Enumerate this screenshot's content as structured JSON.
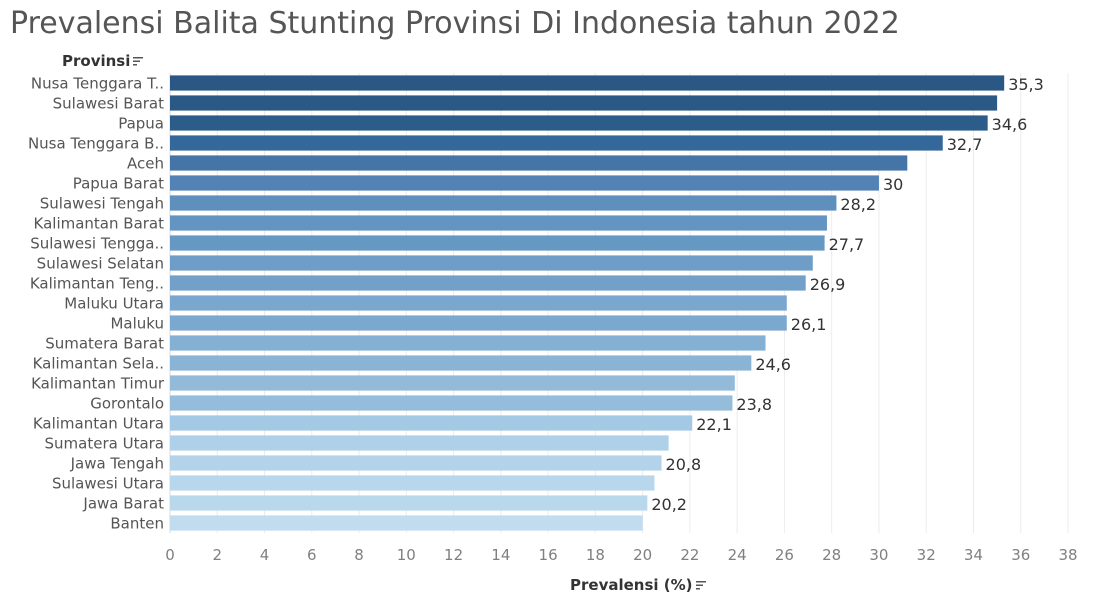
{
  "chart_data": {
    "type": "bar",
    "orientation": "horizontal",
    "title": "Prevalensi Balita Stunting Provinsi Di Indonesia tahun 2022",
    "ylabel": "Provinsi",
    "xlabel": "Prevalensi (%)",
    "xlim": [
      0,
      38
    ],
    "xticks": [
      "0",
      "2",
      "4",
      "6",
      "8",
      "10",
      "12",
      "14",
      "16",
      "18",
      "20",
      "22",
      "24",
      "26",
      "28",
      "30",
      "32",
      "34",
      "36",
      "38"
    ],
    "grid": true,
    "categories": [
      "Nusa Tenggara T..",
      "Sulawesi Barat",
      "Papua",
      "Nusa Tenggara B..",
      "Aceh",
      "Papua Barat",
      "Sulawesi Tengah",
      "Kalimantan Barat",
      "Sulawesi Tengga..",
      "Sulawesi Selatan",
      "Kalimantan Teng..",
      "Maluku Utara",
      "Maluku",
      "Sumatera Barat",
      "Kalimantan Sela..",
      "Kalimantan Timur",
      "Gorontalo",
      "Kalimantan Utara",
      "Sumatera Utara",
      "Jawa Tengah",
      "Sulawesi Utara",
      "Jawa Barat",
      "Banten"
    ],
    "values": [
      35.3,
      35.0,
      34.6,
      32.7,
      31.2,
      30.0,
      28.2,
      27.8,
      27.7,
      27.2,
      26.9,
      26.1,
      26.1,
      25.2,
      24.6,
      23.9,
      23.8,
      22.1,
      21.1,
      20.8,
      20.5,
      20.2,
      20.0
    ],
    "data_labels": [
      "35,3",
      "",
      "34,6",
      "32,7",
      "",
      "30",
      "28,2",
      "",
      "27,7",
      "",
      "26,9",
      "",
      "26,1",
      "",
      "24,6",
      "",
      "23,8",
      "22,1",
      "",
      "20,8",
      "",
      "20,2",
      ""
    ],
    "colors": [
      "#2a5783",
      "#2b5986",
      "#2c5c8a",
      "#35689a",
      "#4574a7",
      "#5383b4",
      "#5e8fbd",
      "#6495c2",
      "#6698c4",
      "#6e9dc7",
      "#72a0c9",
      "#7aa7ce",
      "#7ba8cf",
      "#84b0d4",
      "#8ab4d6",
      "#93bad9",
      "#95bcda",
      "#a4c9e5",
      "#aed0e8",
      "#b2d3ea",
      "#b8d7ec",
      "#bad8ec",
      "#c0dcee"
    ]
  },
  "sort_icon": "sort-descending-icon"
}
